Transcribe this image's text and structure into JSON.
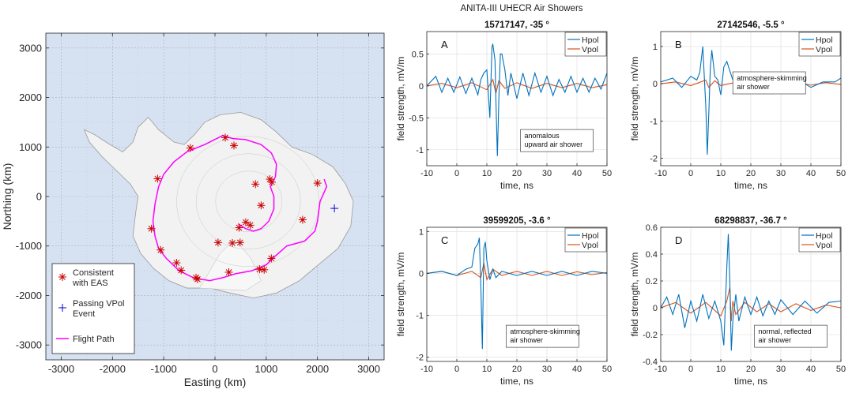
{
  "suptitle": "ANITA-III UHECR Air Showers",
  "colors": {
    "hpol": "#0072BD",
    "vpol": "#D95319",
    "flight": "#FF00FF",
    "eas": "#CC0000",
    "vpolEvent": "#0000CC",
    "sea": "#D6E2F2",
    "land": "#F2F2F2"
  },
  "chart_data": [
    {
      "type": "scatter",
      "panel": "map",
      "xlabel": "Easting (km)",
      "ylabel": "Northing (km)",
      "xlim": [
        -3300,
        3300
      ],
      "ylim": [
        -3300,
        3300
      ],
      "xticks": [
        "-3000",
        "-2000",
        "-1000",
        "0",
        "1000",
        "2000",
        "3000"
      ],
      "yticks": [
        "3000",
        "2000",
        "1000",
        "0",
        "-1000",
        "-2000",
        "-3000"
      ],
      "grid": true,
      "legend_position": "bottom-left",
      "legend": {
        "eas": "Consistent with EAS",
        "vpol": "Passing VPol Event",
        "flight": "Flight Path"
      },
      "eas_points": [
        [
          200,
          1190
        ],
        [
          370,
          1030
        ],
        [
          -480,
          980
        ],
        [
          -1120,
          360
        ],
        [
          -1240,
          -650
        ],
        [
          -1060,
          -1080
        ],
        [
          -750,
          -1340
        ],
        [
          -660,
          -1490
        ],
        [
          -370,
          -1640
        ],
        [
          -340,
          -1670
        ],
        [
          60,
          -930
        ],
        [
          270,
          -1530
        ],
        [
          340,
          -940
        ],
        [
          490,
          -930
        ],
        [
          470,
          -630
        ],
        [
          600,
          -520
        ],
        [
          690,
          -580
        ],
        [
          870,
          -1470
        ],
        [
          960,
          -1480
        ],
        [
          900,
          -180
        ],
        [
          1070,
          350
        ],
        [
          1110,
          290
        ],
        [
          1100,
          -1250
        ],
        [
          1710,
          -470
        ],
        [
          2000,
          270
        ],
        [
          790,
          250
        ]
      ],
      "vpol_points": [
        [
          2330,
          -240
        ]
      ],
      "flight_path": [
        [
          2130,
          350
        ],
        [
          2180,
          200
        ],
        [
          2050,
          -100
        ],
        [
          2000,
          -500
        ],
        [
          1950,
          -700
        ],
        [
          1750,
          -900
        ],
        [
          1400,
          -1000
        ],
        [
          1180,
          -1200
        ],
        [
          1000,
          -1380
        ],
        [
          720,
          -1500
        ],
        [
          400,
          -1560
        ],
        [
          150,
          -1640
        ],
        [
          -100,
          -1700
        ],
        [
          -400,
          -1650
        ],
        [
          -700,
          -1500
        ],
        [
          -950,
          -1250
        ],
        [
          -1100,
          -1050
        ],
        [
          -1170,
          -800
        ],
        [
          -1210,
          -500
        ],
        [
          -1170,
          -150
        ],
        [
          -1100,
          200
        ],
        [
          -1000,
          450
        ],
        [
          -800,
          700
        ],
        [
          -550,
          900
        ],
        [
          -200,
          1050
        ],
        [
          150,
          1230
        ],
        [
          350,
          1170
        ],
        [
          600,
          1150
        ],
        [
          900,
          1050
        ],
        [
          1100,
          880
        ],
        [
          1200,
          650
        ],
        [
          1180,
          400
        ],
        [
          1080,
          200
        ],
        [
          1150,
          0
        ],
        [
          1150,
          -250
        ],
        [
          1050,
          -500
        ],
        [
          900,
          -650
        ],
        [
          750,
          -700
        ],
        [
          600,
          -650
        ],
        [
          450,
          -550
        ]
      ]
    },
    {
      "type": "line",
      "panel": "A",
      "letter": "A",
      "title": "15717147, -35 °",
      "xlabel": "time, ns",
      "ylabel": "field strength, mV/m",
      "xlim": [
        -10,
        50
      ],
      "ylim": [
        -1.25,
        0.85
      ],
      "xticks": [
        -10,
        0,
        10,
        20,
        30,
        40,
        50
      ],
      "yticks": [
        0.5,
        0,
        -0.5,
        -1
      ],
      "annotation": [
        "anomalous",
        "upward air shower"
      ],
      "legend_position": "top-right",
      "series": [
        {
          "name": "Hpol",
          "x": [
            -10,
            -7,
            -5,
            -3,
            -1,
            1,
            3,
            5,
            7,
            8,
            9,
            10,
            11,
            11.7,
            12,
            12.7,
            13,
            13.5,
            14,
            14.5,
            15,
            16,
            17,
            18,
            20,
            22,
            24,
            26,
            28,
            30,
            32,
            34,
            36,
            38,
            40,
            42,
            44,
            46,
            48,
            50
          ],
          "y": [
            0,
            0.15,
            -0.1,
            0.12,
            -0.1,
            0.14,
            -0.12,
            0.12,
            -0.14,
            0.1,
            0.2,
            0.25,
            -0.5,
            0.62,
            0.65,
            0.4,
            -0.2,
            -1.1,
            -0.2,
            0.5,
            0.5,
            0.25,
            -0.15,
            0.2,
            -0.2,
            0.2,
            -0.15,
            0.2,
            -0.1,
            0.15,
            -0.15,
            0.1,
            -0.1,
            0.15,
            -0.1,
            0.12,
            -0.1,
            0.12,
            -0.05,
            0.2
          ]
        },
        {
          "name": "Vpol",
          "x": [
            -10,
            -5,
            0,
            5,
            10,
            12,
            13,
            14,
            16,
            20,
            25,
            30,
            35,
            40,
            45,
            50
          ],
          "y": [
            0,
            0.04,
            -0.03,
            0.05,
            -0.06,
            0.1,
            -0.12,
            0.08,
            -0.04,
            0.05,
            -0.04,
            0.04,
            -0.03,
            0.04,
            -0.03,
            0.02
          ]
        }
      ]
    },
    {
      "type": "line",
      "panel": "B",
      "letter": "B",
      "title": "27142546, -5.5 °",
      "xlabel": "time, ns",
      "ylabel": "field strength, mV/m",
      "xlim": [
        -10,
        50
      ],
      "ylim": [
        -2.2,
        1.4
      ],
      "xticks": [
        -10,
        0,
        10,
        20,
        30,
        40,
        50
      ],
      "yticks": [
        1,
        0,
        -1,
        -2
      ],
      "annotation": [
        "atmosphere-skimming",
        "air shower"
      ],
      "legend_position": "top-right",
      "series": [
        {
          "name": "Hpol",
          "x": [
            -10,
            -6,
            -3,
            0,
            2,
            3,
            4,
            5,
            5.5,
            6,
            6.5,
            7,
            8,
            9,
            10,
            11,
            12,
            14,
            16,
            18,
            20,
            24,
            28,
            32,
            36,
            40,
            44,
            48,
            50
          ],
          "y": [
            0.05,
            0.15,
            -0.1,
            0.2,
            0.1,
            0.3,
            1.0,
            -0.6,
            -1.9,
            -0.8,
            0.4,
            0.9,
            0.2,
            0.1,
            -0.3,
            0.45,
            0.6,
            0.1,
            0.25,
            -0.1,
            0.15,
            -0.1,
            0.1,
            -0.15,
            0.1,
            -0.1,
            0.05,
            0.05,
            0.15
          ]
        },
        {
          "name": "Vpol",
          "x": [
            -10,
            -5,
            0,
            5,
            6,
            8,
            10,
            15,
            20,
            25,
            30,
            35,
            40,
            45,
            50
          ],
          "y": [
            0,
            0.05,
            -0.05,
            0.1,
            -0.1,
            0.08,
            -0.05,
            0.04,
            -0.04,
            0.05,
            -0.05,
            0.04,
            -0.04,
            0.03,
            -0.02
          ]
        }
      ]
    },
    {
      "type": "line",
      "panel": "C",
      "letter": "C",
      "title": "39599205, -3.6 °",
      "xlabel": "time, ns",
      "ylabel": "field strength, mV/m",
      "xlim": [
        -10,
        50
      ],
      "ylim": [
        -2.1,
        1.1
      ],
      "xticks": [
        -10,
        0,
        10,
        20,
        30,
        40,
        50
      ],
      "yticks": [
        1,
        0,
        -1,
        -2
      ],
      "annotation": [
        "atmosphere-skimming",
        "air shower"
      ],
      "legend_position": "top-right",
      "series": [
        {
          "name": "Hpol",
          "x": [
            -10,
            -5,
            0,
            3,
            5,
            6,
            7,
            7.5,
            8,
            8.5,
            9,
            9.5,
            10,
            11,
            12,
            13,
            15,
            20,
            25,
            30,
            35,
            40,
            45,
            50
          ],
          "y": [
            0,
            0.05,
            -0.05,
            0.1,
            0.15,
            0.6,
            0.7,
            0.85,
            -0.3,
            -1.8,
            0.6,
            0.75,
            0.3,
            -0.15,
            0.1,
            -0.1,
            0.05,
            -0.05,
            0.05,
            -0.05,
            0.05,
            -0.05,
            0.05,
            0
          ]
        },
        {
          "name": "Vpol",
          "x": [
            -10,
            -5,
            0,
            5,
            8,
            9,
            10,
            12,
            15,
            20,
            25,
            30,
            35,
            40,
            45,
            50
          ],
          "y": [
            0,
            0.05,
            -0.05,
            0.05,
            -0.1,
            0.25,
            -0.15,
            0.1,
            -0.05,
            0.05,
            -0.05,
            0.05,
            -0.05,
            0.04,
            -0.03,
            0.02
          ]
        }
      ]
    },
    {
      "type": "line",
      "panel": "D",
      "letter": "D",
      "title": "68298837, -36.7 °",
      "xlabel": "time, ns",
      "ylabel": "field strength, mV/m",
      "xlim": [
        -10,
        50
      ],
      "ylim": [
        -0.4,
        0.6
      ],
      "xticks": [
        -10,
        0,
        10,
        20,
        30,
        40,
        50
      ],
      "yticks": [
        0.6,
        0.4,
        0.2,
        0,
        -0.2,
        -0.4
      ],
      "annotation": [
        "normal, reflected",
        "air shower"
      ],
      "legend_position": "top-right",
      "series": [
        {
          "name": "Hpol",
          "x": [
            -10,
            -8,
            -6,
            -4,
            -2,
            0,
            2,
            4,
            6,
            8,
            10,
            11,
            12,
            12.5,
            13,
            13.5,
            14,
            15,
            16,
            18,
            20,
            22,
            24,
            26,
            28,
            30,
            34,
            38,
            42,
            46,
            50
          ],
          "y": [
            0,
            0.08,
            -0.05,
            0.1,
            -0.15,
            0.05,
            -0.1,
            0.1,
            -0.08,
            0.05,
            -0.1,
            -0.28,
            0.3,
            0.55,
            0.2,
            -0.32,
            -0.1,
            0.1,
            -0.1,
            0.08,
            -0.05,
            0.08,
            -0.06,
            0.05,
            -0.05,
            0.06,
            -0.05,
            0.05,
            -0.04,
            0.04,
            0.05
          ]
        },
        {
          "name": "Vpol",
          "x": [
            -10,
            -5,
            0,
            5,
            10,
            12,
            13,
            13.5,
            14,
            15,
            18,
            22,
            26,
            30,
            35,
            40,
            45,
            50
          ],
          "y": [
            0,
            0.04,
            -0.04,
            0.04,
            -0.06,
            0.05,
            0.15,
            -0.1,
            0.05,
            -0.05,
            0.04,
            -0.03,
            0.03,
            -0.03,
            0.03,
            -0.02,
            0.02,
            0
          ]
        }
      ]
    }
  ]
}
